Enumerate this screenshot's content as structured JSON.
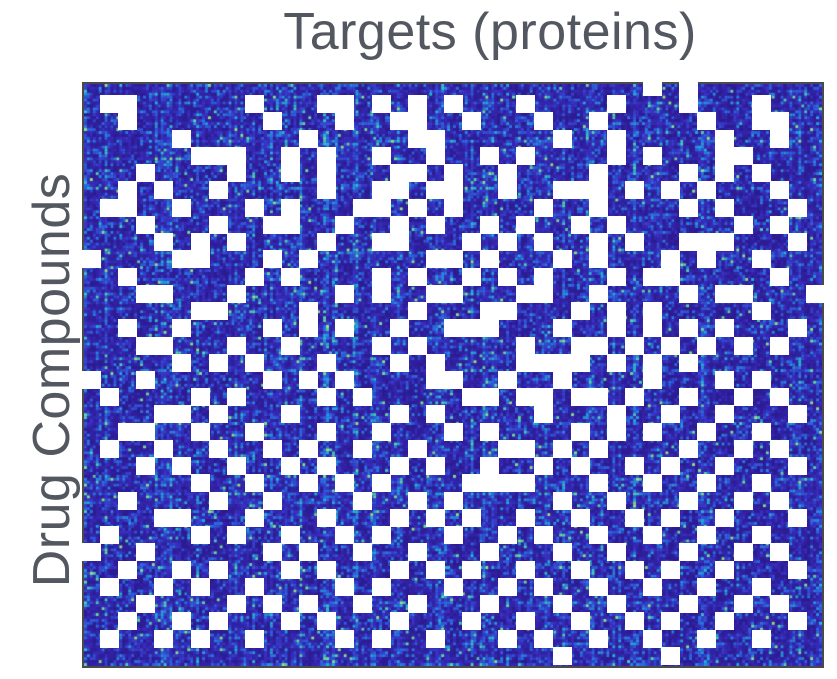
{
  "chart_data": {
    "type": "heatmap",
    "title": "",
    "xlabel": "Targets (proteins)",
    "ylabel": "Drug Compounds",
    "grid": false,
    "legend": "none",
    "colormap": [
      "#2c1b8f",
      "#3a2fc2",
      "#2b6be0",
      "#25b7d8",
      "#7fe08e",
      "#f3f25a"
    ],
    "background_color": "#2c1e96",
    "missing_color": "#ffffff",
    "description_hidden": true,
    "value_range": [
      0,
      1
    ],
    "rows": 198,
    "cols": 250,
    "missing_grid": {
      "rows": 34,
      "cols": 41
    },
    "missing_cells": [
      [
        0,
        31
      ],
      [
        0,
        33
      ],
      [
        1,
        1
      ],
      [
        1,
        2
      ],
      [
        1,
        9
      ],
      [
        1,
        13
      ],
      [
        1,
        14
      ],
      [
        1,
        16
      ],
      [
        1,
        18
      ],
      [
        1,
        20
      ],
      [
        1,
        24
      ],
      [
        1,
        29
      ],
      [
        1,
        33
      ],
      [
        1,
        37
      ],
      [
        2,
        2
      ],
      [
        2,
        10
      ],
      [
        2,
        14
      ],
      [
        2,
        17
      ],
      [
        2,
        18
      ],
      [
        2,
        21
      ],
      [
        2,
        25
      ],
      [
        2,
        28
      ],
      [
        2,
        34
      ],
      [
        2,
        37
      ],
      [
        2,
        38
      ],
      [
        3,
        5
      ],
      [
        3,
        12
      ],
      [
        3,
        18
      ],
      [
        3,
        19
      ],
      [
        3,
        26
      ],
      [
        3,
        29
      ],
      [
        3,
        35
      ],
      [
        3,
        38
      ],
      [
        4,
        6
      ],
      [
        4,
        7
      ],
      [
        4,
        8
      ],
      [
        4,
        11
      ],
      [
        4,
        13
      ],
      [
        4,
        16
      ],
      [
        4,
        19
      ],
      [
        4,
        22
      ],
      [
        4,
        24
      ],
      [
        4,
        29
      ],
      [
        4,
        31
      ],
      [
        4,
        35
      ],
      [
        4,
        36
      ],
      [
        5,
        3
      ],
      [
        5,
        8
      ],
      [
        5,
        11
      ],
      [
        5,
        13
      ],
      [
        5,
        17
      ],
      [
        5,
        18
      ],
      [
        5,
        20
      ],
      [
        5,
        23
      ],
      [
        5,
        28
      ],
      [
        5,
        33
      ],
      [
        5,
        35
      ],
      [
        5,
        37
      ],
      [
        6,
        2
      ],
      [
        6,
        4
      ],
      [
        6,
        7
      ],
      [
        6,
        13
      ],
      [
        6,
        16
      ],
      [
        6,
        17
      ],
      [
        6,
        19
      ],
      [
        6,
        20
      ],
      [
        6,
        23
      ],
      [
        6,
        26
      ],
      [
        6,
        27
      ],
      [
        6,
        28
      ],
      [
        6,
        30
      ],
      [
        6,
        32
      ],
      [
        6,
        34
      ],
      [
        6,
        38
      ],
      [
        7,
        1
      ],
      [
        7,
        2
      ],
      [
        7,
        5
      ],
      [
        7,
        9
      ],
      [
        7,
        11
      ],
      [
        7,
        15
      ],
      [
        7,
        16
      ],
      [
        7,
        18
      ],
      [
        7,
        20
      ],
      [
        7,
        25
      ],
      [
        7,
        28
      ],
      [
        7,
        33
      ],
      [
        7,
        35
      ],
      [
        7,
        39
      ],
      [
        8,
        3
      ],
      [
        8,
        7
      ],
      [
        8,
        10
      ],
      [
        8,
        11
      ],
      [
        8,
        14
      ],
      [
        8,
        17
      ],
      [
        8,
        19
      ],
      [
        8,
        22
      ],
      [
        8,
        24
      ],
      [
        8,
        27
      ],
      [
        8,
        29
      ],
      [
        8,
        36
      ],
      [
        8,
        38
      ],
      [
        9,
        4
      ],
      [
        9,
        6
      ],
      [
        9,
        8
      ],
      [
        9,
        13
      ],
      [
        9,
        16
      ],
      [
        9,
        17
      ],
      [
        9,
        21
      ],
      [
        9,
        23
      ],
      [
        9,
        25
      ],
      [
        9,
        28
      ],
      [
        9,
        30
      ],
      [
        9,
        33
      ],
      [
        9,
        34
      ],
      [
        9,
        35
      ],
      [
        9,
        39
      ],
      [
        10,
        0
      ],
      [
        10,
        5
      ],
      [
        10,
        6
      ],
      [
        10,
        10
      ],
      [
        10,
        12
      ],
      [
        10,
        19
      ],
      [
        10,
        20
      ],
      [
        10,
        22
      ],
      [
        10,
        26
      ],
      [
        10,
        28
      ],
      [
        10,
        32
      ],
      [
        10,
        34
      ],
      [
        10,
        37
      ],
      [
        11,
        2
      ],
      [
        11,
        9
      ],
      [
        11,
        11
      ],
      [
        11,
        16
      ],
      [
        11,
        18
      ],
      [
        11,
        21
      ],
      [
        11,
        23
      ],
      [
        11,
        25
      ],
      [
        11,
        29
      ],
      [
        11,
        31
      ],
      [
        11,
        32
      ],
      [
        11,
        38
      ],
      [
        12,
        3
      ],
      [
        12,
        4
      ],
      [
        12,
        8
      ],
      [
        12,
        14
      ],
      [
        12,
        16
      ],
      [
        12,
        19
      ],
      [
        12,
        20
      ],
      [
        12,
        24
      ],
      [
        12,
        25
      ],
      [
        12,
        28
      ],
      [
        12,
        33
      ],
      [
        12,
        35
      ],
      [
        12,
        36
      ],
      [
        12,
        40
      ],
      [
        13,
        6
      ],
      [
        13,
        7
      ],
      [
        13,
        12
      ],
      [
        13,
        18
      ],
      [
        13,
        22
      ],
      [
        13,
        23
      ],
      [
        13,
        27
      ],
      [
        13,
        29
      ],
      [
        13,
        31
      ],
      [
        13,
        37
      ],
      [
        14,
        2
      ],
      [
        14,
        5
      ],
      [
        14,
        10
      ],
      [
        14,
        12
      ],
      [
        14,
        14
      ],
      [
        14,
        17
      ],
      [
        14,
        20
      ],
      [
        14,
        21
      ],
      [
        14,
        22
      ],
      [
        14,
        26
      ],
      [
        14,
        29
      ],
      [
        14,
        31
      ],
      [
        14,
        33
      ],
      [
        14,
        35
      ],
      [
        14,
        39
      ],
      [
        15,
        3
      ],
      [
        15,
        4
      ],
      [
        15,
        8
      ],
      [
        15,
        11
      ],
      [
        15,
        16
      ],
      [
        15,
        18
      ],
      [
        15,
        24
      ],
      [
        15,
        27
      ],
      [
        15,
        28
      ],
      [
        15,
        30
      ],
      [
        15,
        32
      ],
      [
        15,
        34
      ],
      [
        15,
        36
      ],
      [
        15,
        38
      ],
      [
        16,
        5
      ],
      [
        16,
        7
      ],
      [
        16,
        9
      ],
      [
        16,
        13
      ],
      [
        16,
        17
      ],
      [
        16,
        19
      ],
      [
        16,
        24
      ],
      [
        16,
        25
      ],
      [
        16,
        26
      ],
      [
        16,
        27
      ],
      [
        16,
        29
      ],
      [
        16,
        31
      ],
      [
        16,
        33
      ],
      [
        17,
        0
      ],
      [
        17,
        3
      ],
      [
        17,
        10
      ],
      [
        17,
        12
      ],
      [
        17,
        14
      ],
      [
        17,
        19
      ],
      [
        17,
        20
      ],
      [
        17,
        23
      ],
      [
        17,
        26
      ],
      [
        17,
        31
      ],
      [
        17,
        35
      ],
      [
        17,
        37
      ],
      [
        18,
        1
      ],
      [
        18,
        6
      ],
      [
        18,
        8
      ],
      [
        18,
        13
      ],
      [
        18,
        15
      ],
      [
        18,
        21
      ],
      [
        18,
        22
      ],
      [
        18,
        24
      ],
      [
        18,
        25
      ],
      [
        18,
        27
      ],
      [
        18,
        28
      ],
      [
        18,
        30
      ],
      [
        18,
        33
      ],
      [
        18,
        36
      ],
      [
        18,
        38
      ],
      [
        19,
        4
      ],
      [
        19,
        5
      ],
      [
        19,
        7
      ],
      [
        19,
        11
      ],
      [
        19,
        17
      ],
      [
        19,
        19
      ],
      [
        19,
        25
      ],
      [
        19,
        29
      ],
      [
        19,
        32
      ],
      [
        19,
        35
      ],
      [
        19,
        39
      ],
      [
        20,
        2
      ],
      [
        20,
        3
      ],
      [
        20,
        6
      ],
      [
        20,
        9
      ],
      [
        20,
        13
      ],
      [
        20,
        16
      ],
      [
        20,
        20
      ],
      [
        20,
        22
      ],
      [
        20,
        27
      ],
      [
        20,
        29
      ],
      [
        20,
        31
      ],
      [
        20,
        34
      ],
      [
        20,
        37
      ],
      [
        21,
        1
      ],
      [
        21,
        4
      ],
      [
        21,
        7
      ],
      [
        21,
        10
      ],
      [
        21,
        12
      ],
      [
        21,
        15
      ],
      [
        21,
        18
      ],
      [
        21,
        23
      ],
      [
        21,
        24
      ],
      [
        21,
        26
      ],
      [
        21,
        28
      ],
      [
        21,
        33
      ],
      [
        21,
        36
      ],
      [
        21,
        38
      ],
      [
        22,
        3
      ],
      [
        22,
        5
      ],
      [
        22,
        8
      ],
      [
        22,
        11
      ],
      [
        22,
        13
      ],
      [
        22,
        17
      ],
      [
        22,
        19
      ],
      [
        22,
        22
      ],
      [
        22,
        25
      ],
      [
        22,
        27
      ],
      [
        22,
        30
      ],
      [
        22,
        32
      ],
      [
        22,
        35
      ],
      [
        22,
        39
      ],
      [
        23,
        6
      ],
      [
        23,
        9
      ],
      [
        23,
        12
      ],
      [
        23,
        14
      ],
      [
        23,
        16
      ],
      [
        23,
        21
      ],
      [
        23,
        22
      ],
      [
        23,
        23
      ],
      [
        23,
        24
      ],
      [
        23,
        28
      ],
      [
        23,
        31
      ],
      [
        23,
        34
      ],
      [
        23,
        37
      ],
      [
        24,
        2
      ],
      [
        24,
        7
      ],
      [
        24,
        10
      ],
      [
        24,
        15
      ],
      [
        24,
        18
      ],
      [
        24,
        20
      ],
      [
        24,
        26
      ],
      [
        24,
        29
      ],
      [
        24,
        33
      ],
      [
        24,
        36
      ],
      [
        24,
        38
      ],
      [
        25,
        4
      ],
      [
        25,
        5
      ],
      [
        25,
        9
      ],
      [
        25,
        13
      ],
      [
        25,
        17
      ],
      [
        25,
        19
      ],
      [
        25,
        21
      ],
      [
        25,
        24
      ],
      [
        25,
        27
      ],
      [
        25,
        30
      ],
      [
        25,
        32
      ],
      [
        25,
        35
      ],
      [
        25,
        39
      ],
      [
        26,
        1
      ],
      [
        26,
        6
      ],
      [
        26,
        8
      ],
      [
        26,
        11
      ],
      [
        26,
        14
      ],
      [
        26,
        16
      ],
      [
        26,
        20
      ],
      [
        26,
        23
      ],
      [
        26,
        25
      ],
      [
        26,
        28
      ],
      [
        26,
        31
      ],
      [
        26,
        34
      ],
      [
        26,
        37
      ],
      [
        27,
        0
      ],
      [
        27,
        3
      ],
      [
        27,
        10
      ],
      [
        27,
        12
      ],
      [
        27,
        15
      ],
      [
        27,
        18
      ],
      [
        27,
        22
      ],
      [
        27,
        26
      ],
      [
        27,
        29
      ],
      [
        27,
        33
      ],
      [
        27,
        36
      ],
      [
        27,
        38
      ],
      [
        28,
        2
      ],
      [
        28,
        5
      ],
      [
        28,
        7
      ],
      [
        28,
        11
      ],
      [
        28,
        13
      ],
      [
        28,
        17
      ],
      [
        28,
        19
      ],
      [
        28,
        21
      ],
      [
        28,
        24
      ],
      [
        28,
        27
      ],
      [
        28,
        30
      ],
      [
        28,
        32
      ],
      [
        28,
        35
      ],
      [
        28,
        39
      ],
      [
        29,
        1
      ],
      [
        29,
        4
      ],
      [
        29,
        6
      ],
      [
        29,
        9
      ],
      [
        29,
        14
      ],
      [
        29,
        16
      ],
      [
        29,
        20
      ],
      [
        29,
        23
      ],
      [
        29,
        25
      ],
      [
        29,
        28
      ],
      [
        29,
        31
      ],
      [
        29,
        34
      ],
      [
        29,
        37
      ],
      [
        30,
        3
      ],
      [
        30,
        8
      ],
      [
        30,
        10
      ],
      [
        30,
        12
      ],
      [
        30,
        15
      ],
      [
        30,
        18
      ],
      [
        30,
        22
      ],
      [
        30,
        26
      ],
      [
        30,
        29
      ],
      [
        30,
        33
      ],
      [
        30,
        36
      ],
      [
        30,
        38
      ],
      [
        31,
        2
      ],
      [
        31,
        5
      ],
      [
        31,
        7
      ],
      [
        31,
        11
      ],
      [
        31,
        13
      ],
      [
        31,
        17
      ],
      [
        31,
        21
      ],
      [
        31,
        24
      ],
      [
        31,
        27
      ],
      [
        31,
        30
      ],
      [
        31,
        32
      ],
      [
        31,
        35
      ],
      [
        31,
        39
      ],
      [
        32,
        1
      ],
      [
        32,
        4
      ],
      [
        32,
        6
      ],
      [
        32,
        9
      ],
      [
        32,
        14
      ],
      [
        32,
        16
      ],
      [
        32,
        19
      ],
      [
        32,
        23
      ],
      [
        32,
        25
      ],
      [
        32,
        28
      ],
      [
        32,
        31
      ],
      [
        32,
        34
      ],
      [
        32,
        37
      ],
      [
        33,
        26
      ],
      [
        33,
        32
      ]
    ]
  }
}
